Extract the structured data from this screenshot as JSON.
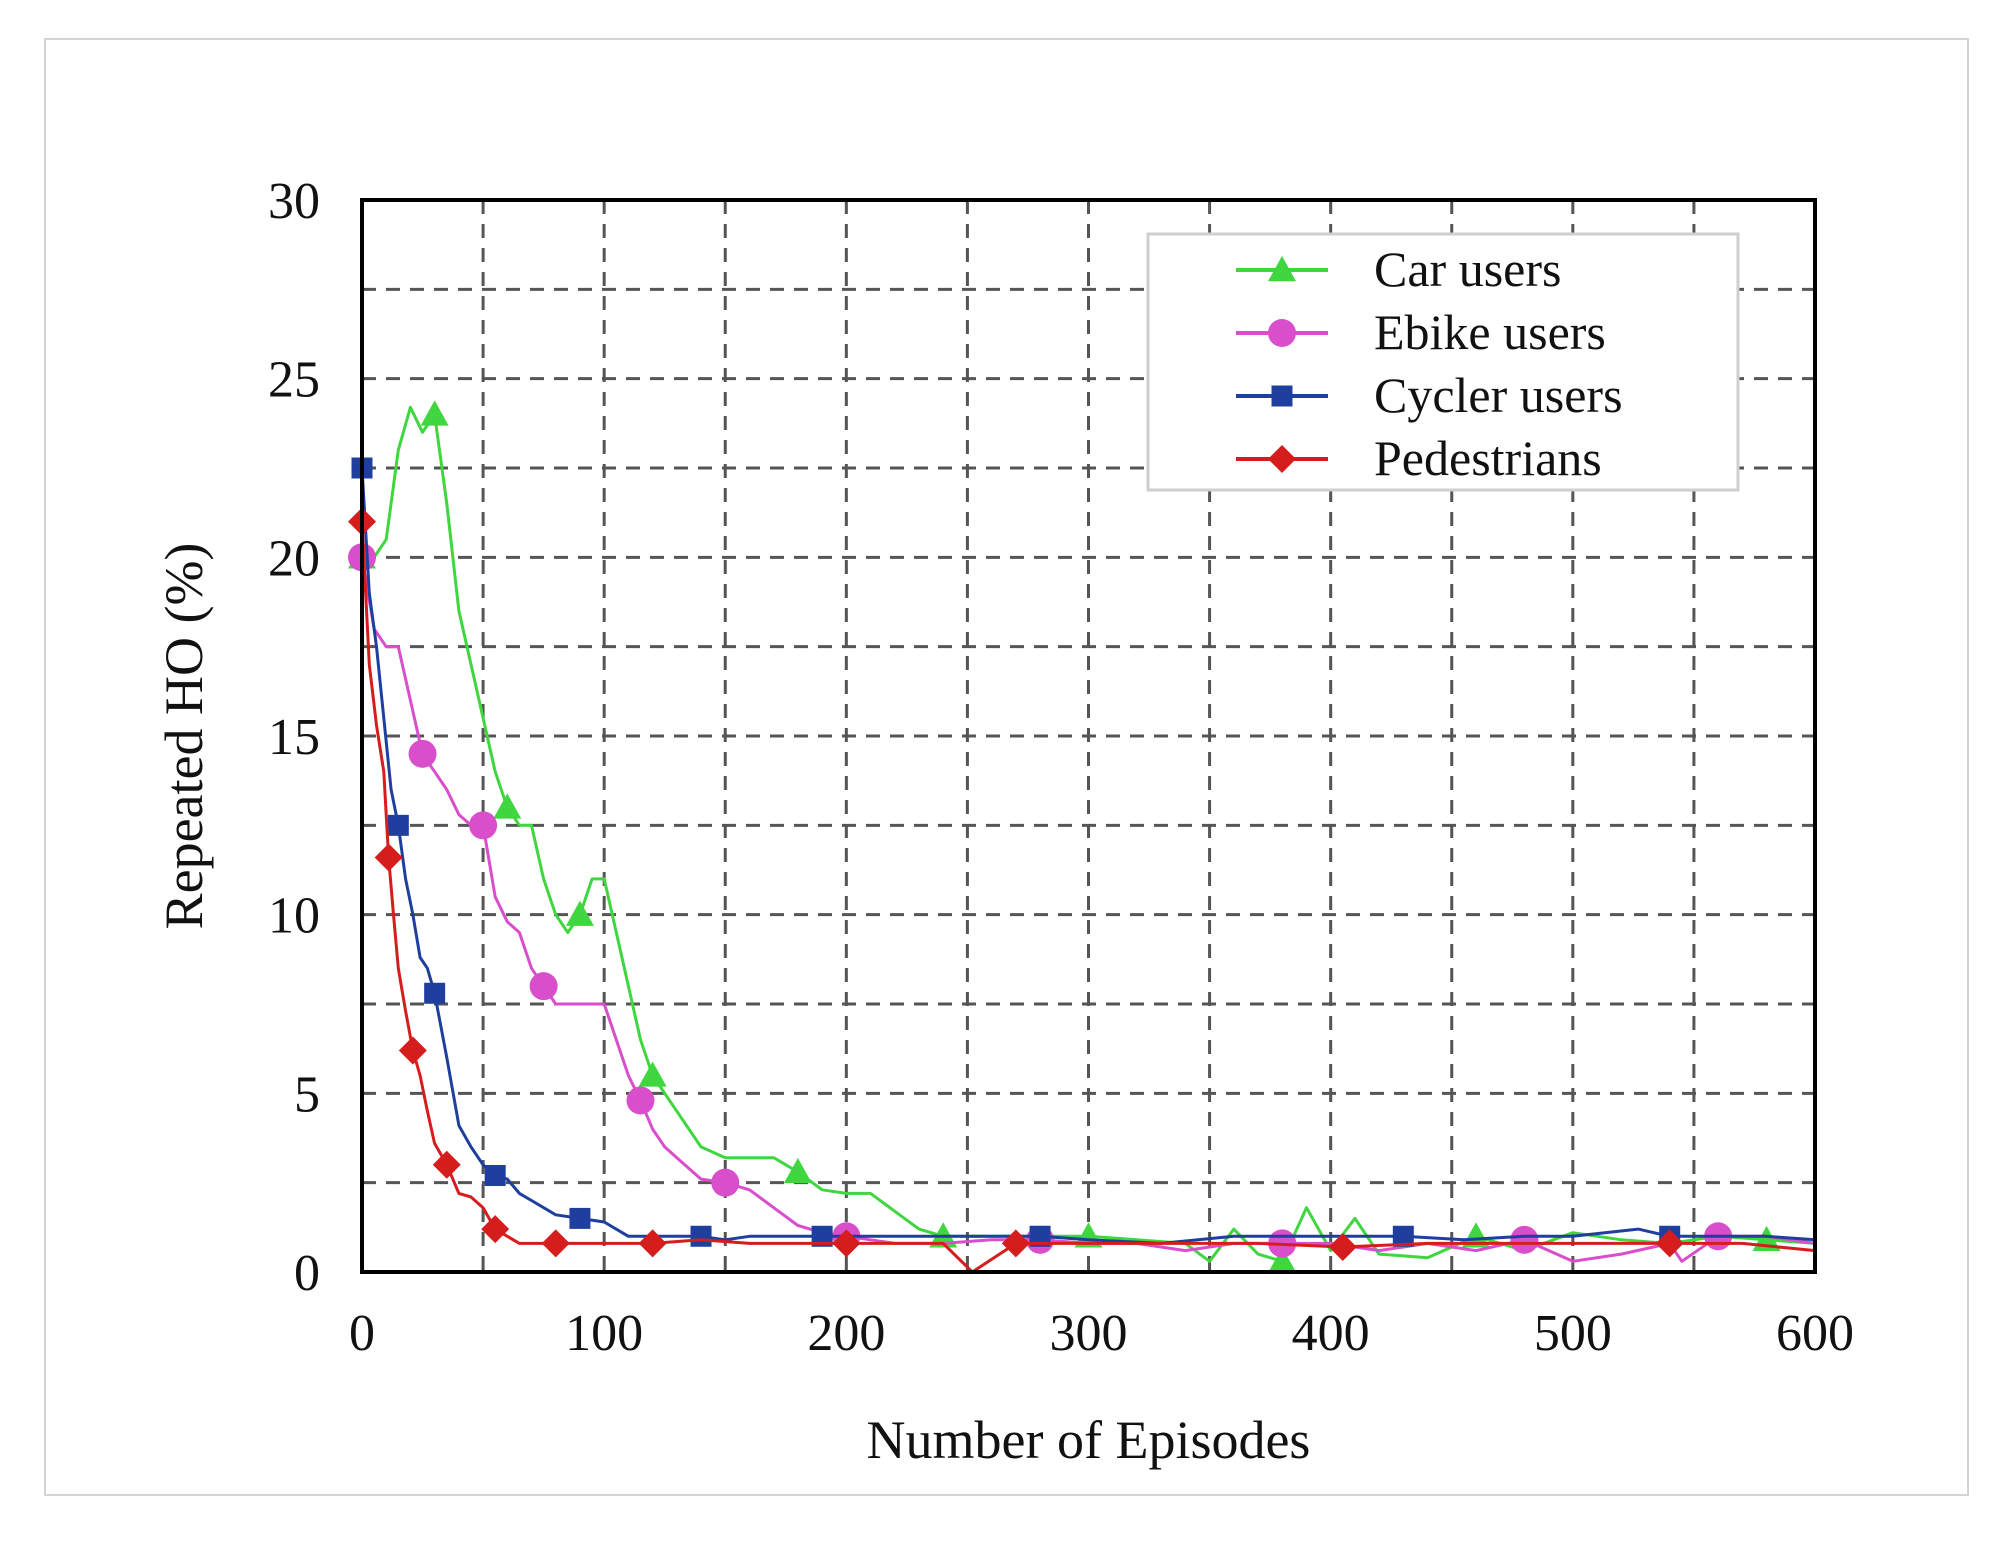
{
  "chart_data": {
    "type": "line",
    "title": "",
    "xlabel": "Number of Episodes",
    "ylabel": "Repeated HO (%)",
    "xlim": [
      0,
      600
    ],
    "ylim": [
      0,
      30
    ],
    "xticks": [
      0,
      100,
      200,
      300,
      400,
      500,
      600
    ],
    "yticks": [
      0,
      5,
      10,
      15,
      20,
      25,
      30
    ],
    "x_tick_labels": [
      "0",
      "100",
      "200",
      "300",
      "400",
      "500",
      "600"
    ],
    "y_tick_labels": [
      "0",
      "5",
      "10",
      "15",
      "20",
      "25",
      "30"
    ],
    "grid": "dashed, major and minor (every 50 on x, every 2.5 on y)",
    "legend_position": "top-right",
    "series": [
      {
        "name": "Car users",
        "color": "#3fd63f",
        "marker": "triangle",
        "x": [
          0,
          5,
          10,
          15,
          20,
          25,
          30,
          35,
          40,
          45,
          50,
          55,
          60,
          65,
          70,
          75,
          80,
          85,
          90,
          95,
          100,
          105,
          110,
          115,
          120,
          130,
          140,
          150,
          160,
          170,
          180,
          190,
          200,
          210,
          220,
          230,
          240,
          250,
          260,
          270,
          280,
          290,
          300,
          320,
          340,
          350,
          360,
          370,
          380,
          390,
          400,
          410,
          420,
          440,
          460,
          480,
          500,
          520,
          540,
          560,
          580,
          600
        ],
        "y": [
          20,
          20,
          20.5,
          23,
          24.2,
          23.5,
          24,
          21.5,
          18.5,
          17,
          15.5,
          14,
          13,
          12.5,
          12.5,
          11,
          10,
          9.5,
          10,
          11,
          11,
          9.5,
          8,
          6.5,
          5.5,
          4.5,
          3.5,
          3.2,
          3.2,
          3.2,
          2.8,
          2.3,
          2.2,
          2.2,
          1.7,
          1.2,
          1.0,
          1.0,
          1.0,
          1.0,
          1.0,
          1.0,
          1.0,
          0.9,
          0.8,
          0.3,
          1.2,
          0.5,
          0.3,
          1.8,
          0.6,
          1.5,
          0.5,
          0.4,
          1.0,
          0.6,
          1.1,
          0.9,
          0.8,
          1.0,
          0.9,
          0.8
        ]
      },
      {
        "name": "Ebike users",
        "color": "#d84ecb",
        "marker": "circle",
        "x": [
          0,
          5,
          10,
          15,
          20,
          25,
          30,
          35,
          40,
          45,
          50,
          55,
          60,
          65,
          70,
          75,
          80,
          90,
          100,
          110,
          115,
          120,
          125,
          130,
          140,
          150,
          160,
          170,
          180,
          190,
          200,
          210,
          220,
          240,
          260,
          280,
          300,
          320,
          340,
          360,
          380,
          400,
          420,
          440,
          460,
          480,
          500,
          520,
          540,
          545,
          560,
          580,
          600
        ],
        "y": [
          20,
          18,
          17.5,
          17.5,
          16,
          14.5,
          14,
          13.5,
          12.8,
          12.5,
          12.5,
          10.5,
          9.8,
          9.5,
          8.5,
          8,
          7.5,
          7.5,
          7.5,
          5.5,
          4.8,
          4,
          3.5,
          3.2,
          2.6,
          2.5,
          2.3,
          1.8,
          1.3,
          1.1,
          1.0,
          0.9,
          0.8,
          0.8,
          0.9,
          0.9,
          0.8,
          0.8,
          0.6,
          0.8,
          0.8,
          0.8,
          0.6,
          0.8,
          0.6,
          0.9,
          0.3,
          0.5,
          0.8,
          0.3,
          1.0,
          1.0,
          0.8
        ]
      },
      {
        "name": "Cycler users",
        "color": "#1f3f9e",
        "marker": "square",
        "x": [
          0,
          3,
          6,
          9,
          12,
          15,
          18,
          21,
          24,
          27,
          30,
          35,
          40,
          45,
          50,
          55,
          60,
          65,
          70,
          80,
          90,
          100,
          110,
          120,
          130,
          140,
          150,
          160,
          170,
          180,
          190,
          200,
          220,
          240,
          260,
          280,
          300,
          330,
          360,
          400,
          430,
          455,
          480,
          500,
          527,
          540,
          560,
          580,
          600
        ],
        "y": [
          22.5,
          19,
          17.5,
          15.5,
          13.5,
          12.5,
          11,
          10,
          8.8,
          8.5,
          7.8,
          6,
          4.1,
          3.5,
          3,
          2.7,
          2.6,
          2.2,
          2.0,
          1.6,
          1.5,
          1.4,
          1.0,
          1.0,
          1.0,
          1.0,
          0.9,
          1.0,
          1.0,
          1.0,
          1.0,
          1.0,
          1.0,
          1.0,
          1.0,
          1.0,
          0.9,
          0.8,
          1.0,
          1.0,
          1.0,
          0.9,
          1.0,
          1.0,
          1.2,
          1.0,
          1.0,
          1.0,
          0.9
        ]
      },
      {
        "name": "Pedestrians",
        "color": "#d61d1d",
        "marker": "diamond",
        "x": [
          0,
          3,
          6,
          9,
          11,
          13,
          15,
          18,
          21,
          24,
          27,
          30,
          35,
          40,
          45,
          50,
          55,
          60,
          65,
          70,
          80,
          90,
          100,
          110,
          120,
          140,
          160,
          180,
          200,
          220,
          240,
          252,
          270,
          300,
          340,
          370,
          405,
          440,
          470,
          500,
          540,
          570,
          600
        ],
        "y": [
          21,
          17,
          15.3,
          14,
          11.6,
          10,
          8.5,
          7.3,
          6.2,
          5.5,
          4.5,
          3.6,
          3.0,
          2.2,
          2.1,
          1.8,
          1.2,
          1.0,
          0.8,
          0.8,
          0.8,
          0.8,
          0.8,
          0.8,
          0.8,
          0.9,
          0.8,
          0.8,
          0.8,
          0.8,
          0.8,
          0.0,
          0.8,
          0.8,
          0.8,
          0.8,
          0.7,
          0.8,
          0.8,
          0.8,
          0.8,
          0.8,
          0.6
        ]
      }
    ]
  }
}
